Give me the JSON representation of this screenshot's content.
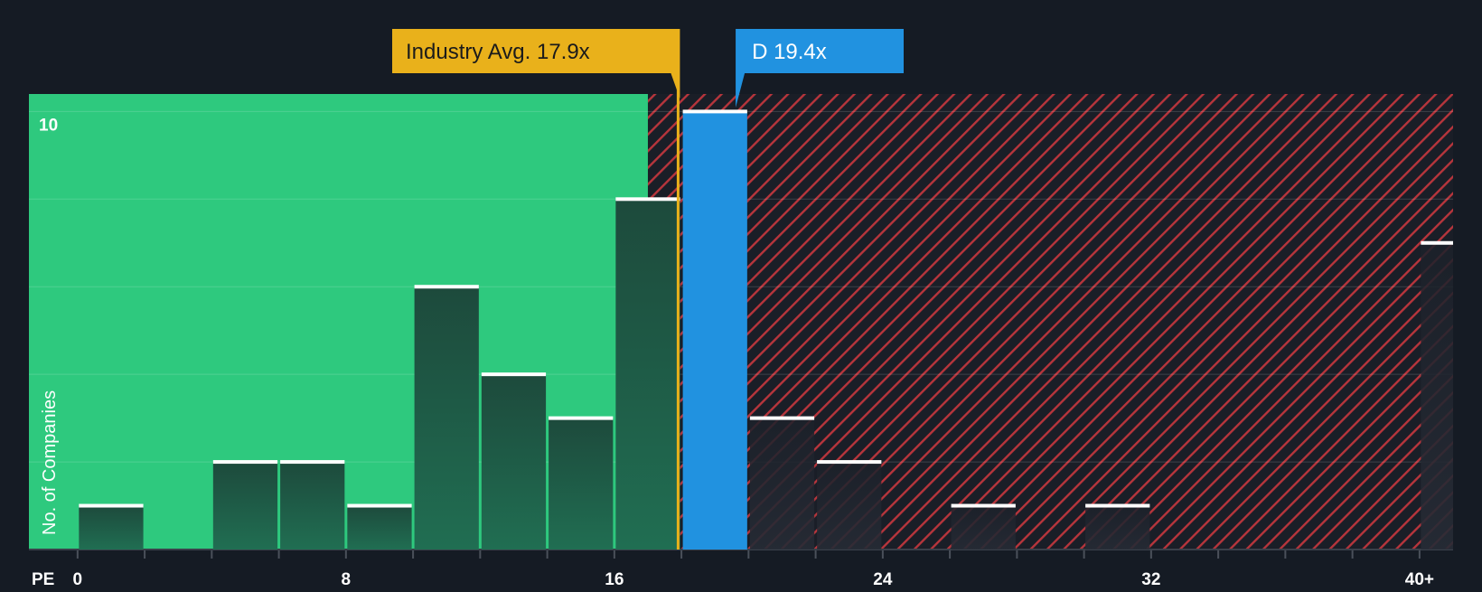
{
  "chart_data": {
    "type": "bar",
    "xlabel": "PE",
    "ylabel": "No. of Companies",
    "x_ticks": [
      {
        "value": 0,
        "label": "0"
      },
      {
        "value": 8,
        "label": "8"
      },
      {
        "value": 16,
        "label": "16"
      },
      {
        "value": 24,
        "label": "24"
      },
      {
        "value": 32,
        "label": "32"
      },
      {
        "value": 40,
        "label": "40+"
      }
    ],
    "x_range": [
      -1.45,
      41.0
    ],
    "ylim": [
      0,
      10.4
    ],
    "y_tick_labels": [
      {
        "value": 10,
        "label": "10"
      }
    ],
    "gridlines_y": [
      2,
      4,
      6,
      8,
      10
    ],
    "bin_width": 2,
    "bars": [
      {
        "x_start": 0,
        "value": 1,
        "zone": "below"
      },
      {
        "x_start": 4,
        "value": 2,
        "zone": "below"
      },
      {
        "x_start": 6,
        "value": 2,
        "zone": "below"
      },
      {
        "x_start": 8,
        "value": 1,
        "zone": "below"
      },
      {
        "x_start": 10,
        "value": 6,
        "zone": "below"
      },
      {
        "x_start": 12,
        "value": 4,
        "zone": "below"
      },
      {
        "x_start": 14,
        "value": 3,
        "zone": "below"
      },
      {
        "x_start": 16,
        "value": 8,
        "zone": "below"
      },
      {
        "x_start": 18,
        "value": 10,
        "zone": "highlight"
      },
      {
        "x_start": 20,
        "value": 3,
        "zone": "above"
      },
      {
        "x_start": 22,
        "value": 2,
        "zone": "above"
      },
      {
        "x_start": 26,
        "value": 1,
        "zone": "above"
      },
      {
        "x_start": 30,
        "value": 1,
        "zone": "above"
      },
      {
        "x_start": 40,
        "value": 7,
        "zone": "above"
      }
    ],
    "fair_zone_end": 17.0,
    "industry_avg": {
      "label": "Industry Avg. 17.9x",
      "value": 17.9
    },
    "company": {
      "label": "D 19.4x",
      "value": 19.4,
      "bin_start": 18
    },
    "colors": {
      "background": "#151b24",
      "fair_zone": "#2ec97e",
      "bar_fill_top": "#1d4a3c",
      "bar_fill_bottom": "#206e52",
      "overvalued_stripe": "#b7353c",
      "overvalued_bg": "#1a1e27",
      "highlight_bar": "#2192e0",
      "industry_callout": "#e9b11b",
      "company_callout": "#2192e0",
      "bar_top_line": "#ffffff",
      "gridline": "#ffffff",
      "axis_text": "#ffffff"
    }
  }
}
